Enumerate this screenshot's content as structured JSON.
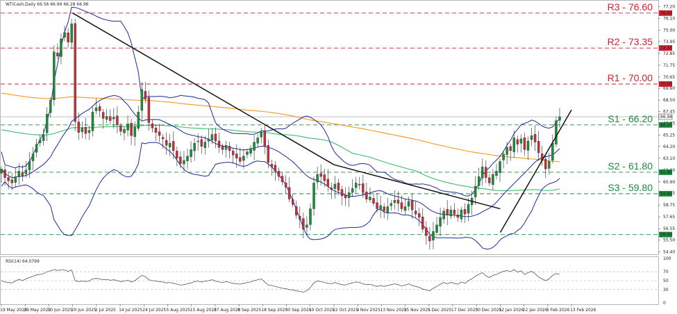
{
  "header": {
    "title": "WTICash,Daily 66.56 66.99 66.28 66.96"
  },
  "rsi_header": "RSI(14) 64.0799",
  "colors": {
    "bull": "#1e8a3c",
    "bear": "#c0303b",
    "bollinger": "#1c2a9a",
    "ma_orange": "#f0a030",
    "ma_green": "#4cbf7a",
    "resistance": "#d01f2e",
    "support": "#1e8a3c",
    "trend": "#111111"
  },
  "chart_data": {
    "type": "candlestick",
    "title": "WTICash,Daily 66.56 66.99 66.28 66.96",
    "ylim": [
      54.3,
      77.3
    ],
    "y_ticks": [
      "77.20",
      "76.10",
      "75.00",
      "73.95",
      "72.85",
      "71.75",
      "70.65",
      "69.60",
      "68.50",
      "67.45",
      "66.35",
      "65.25",
      "64.20",
      "63.10",
      "62.00",
      "60.90",
      "59.85",
      "58.75",
      "57.65",
      "56.55",
      "55.50",
      "54.40"
    ],
    "x_ticks": [
      "19 May 2025",
      "29 May 2025",
      "10 Jun 2025",
      "20 Jun 2025",
      "2 Jul 2025",
      "14 Jul 2025",
      "24 Jul 2025",
      "5 Aug 2025",
      "15 Aug 2025",
      "27 Aug 2025",
      "8 Sep 2025",
      "18 Sep 2025",
      "30 Sep 2025",
      "10 Oct 2025",
      "22 Oct 2025",
      "3 Nov 2025",
      "13 Nov 2025",
      "25 Nov 2025",
      "5 Dec 2025",
      "17 Dec 2025",
      "30 Dec 2025",
      "12 Jan 2026",
      "22 Jan 2026",
      "3 Feb 2026",
      "13 Feb 2026"
    ],
    "close_series": [
      62.1,
      61.3,
      61.0,
      60.8,
      61.4,
      61.9,
      61.5,
      62.0,
      62.8,
      63.5,
      64.4,
      64.8,
      65.3,
      67.2,
      68.5,
      73.0,
      72.6,
      74.2,
      74.8,
      73.9,
      75.6,
      66.5,
      65.5,
      65.9,
      65.4,
      65.7,
      67.4,
      67.8,
      67.5,
      66.8,
      67.0,
      66.6,
      66.9,
      66.2,
      65.6,
      65.8,
      66.3,
      65.2,
      66.0,
      67.4,
      69.5,
      68.6,
      66.4,
      65.9,
      65.5,
      65.2,
      64.9,
      64.3,
      64.5,
      63.8,
      63.1,
      62.6,
      62.9,
      63.3,
      63.9,
      64.5,
      64.7,
      64.2,
      64.6,
      64.9,
      65.3,
      64.7,
      64.1,
      63.9,
      64.3,
      63.8,
      63.4,
      63.1,
      62.8,
      63.3,
      63.7,
      64.0,
      64.6,
      65.0,
      65.5,
      64.2,
      62.7,
      62.3,
      61.9,
      61.4,
      60.9,
      60.4,
      59.3,
      58.8,
      57.8,
      57.4,
      56.5,
      56.9,
      58.4,
      60.8,
      61.6,
      61.4,
      61.0,
      60.5,
      60.2,
      60.7,
      60.1,
      59.6,
      59.4,
      59.9,
      60.3,
      60.8,
      60.6,
      59.9,
      59.3,
      59.5,
      58.9,
      58.4,
      58.7,
      58.2,
      58.6,
      58.9,
      59.2,
      58.9,
      58.4,
      58.6,
      59.1,
      58.3,
      57.9,
      57.6,
      56.5,
      55.9,
      55.4,
      56.3,
      56.9,
      57.6,
      58.2,
      57.8,
      58.3,
      57.9,
      57.6,
      58.3,
      57.9,
      58.8,
      59.4,
      60.5,
      61.4,
      62.3,
      61.3,
      60.8,
      61.6,
      61.9,
      62.8,
      63.5,
      64.1,
      63.8,
      65.0,
      64.4,
      64.9,
      63.9,
      64.7,
      65.2,
      64.6,
      63.6,
      62.9,
      62.1,
      62.8,
      64.5,
      66.6,
      66.96
    ],
    "series": [
      {
        "name": "MA200"
      },
      {
        "name": "MA100"
      },
      {
        "name": "Bollinger(20,2)"
      }
    ],
    "levels": [
      {
        "label": "R3 - 76.60",
        "value": 76.6,
        "kind": "resistance"
      },
      {
        "label": "R2 - 73.35",
        "value": 73.35,
        "kind": "resistance"
      },
      {
        "label": "R1 - 70.00",
        "value": 70.0,
        "kind": "resistance"
      },
      {
        "label": "S1 - 66.20",
        "value": 66.2,
        "kind": "support"
      },
      {
        "label": "S2 - 61.80",
        "value": 61.8,
        "kind": "support"
      },
      {
        "label": "S3 - 59.80",
        "value": 59.8,
        "kind": "support"
      },
      {
        "label": "",
        "value": 56.0,
        "kind": "support"
      }
    ],
    "level_tags": [
      {
        "label": "76.60",
        "value": 76.6,
        "kind": "resistance"
      },
      {
        "label": "73.35",
        "value": 73.35,
        "kind": "resistance"
      },
      {
        "label": "70.00",
        "value": 70.0,
        "kind": "resistance"
      },
      {
        "label": "66.20",
        "value": 66.2,
        "kind": "support"
      },
      {
        "label": "61.80",
        "value": 61.8,
        "kind": "support"
      },
      {
        "label": "59.80",
        "value": 59.8,
        "kind": "support"
      },
      {
        "label": "56.00",
        "value": 56.0,
        "kind": "support"
      }
    ],
    "price_tag": {
      "label": "66.96",
      "value": 66.96
    },
    "trendlines": [
      {
        "from": [
          "20 Jun 2025",
          76.6
        ],
        "to": [
          "22 Oct 2025",
          62.5
        ]
      },
      {
        "from": [
          "22 Oct 2025",
          62.5
        ],
        "to": [
          "12 Jan 2026",
          58.4
        ]
      },
      {
        "from": [
          "12 Jan 2026",
          56.2
        ],
        "to": [
          "13 Feb 2026",
          67.6
        ]
      }
    ],
    "rsi": {
      "name": "RSI(14)",
      "last": 64.0799,
      "ylim": [
        0,
        100
      ],
      "ticks": [
        "100",
        "70",
        "50",
        "30",
        "0"
      ],
      "values": [
        50,
        47,
        46,
        45,
        49,
        53,
        50,
        54,
        57,
        60,
        63,
        64,
        66,
        70,
        72,
        75,
        73,
        74,
        74,
        71,
        74,
        50,
        48,
        49,
        48,
        49,
        54,
        55,
        54,
        52,
        53,
        51,
        52,
        50,
        48,
        49,
        51,
        47,
        50,
        56,
        62,
        59,
        52,
        50,
        49,
        48,
        47,
        45,
        46,
        44,
        42,
        40,
        41,
        43,
        45,
        48,
        49,
        47,
        49,
        50,
        52,
        49,
        47,
        46,
        48,
        46,
        44,
        43,
        42,
        44,
        46,
        47,
        50,
        52,
        54,
        47,
        40,
        39,
        37,
        35,
        33,
        32,
        30,
        29,
        27,
        26,
        24,
        27,
        35,
        45,
        49,
        48,
        46,
        44,
        43,
        46,
        43,
        41,
        40,
        43,
        45,
        47,
        46,
        43,
        41,
        42,
        39,
        37,
        39,
        37,
        39,
        41,
        43,
        41,
        38,
        40,
        43,
        39,
        37,
        35,
        31,
        29,
        27,
        33,
        37,
        42,
        46,
        43,
        46,
        44,
        42,
        47,
        44,
        50,
        54,
        60,
        64,
        68,
        61,
        57,
        62,
        64,
        68,
        71,
        73,
        70,
        75,
        69,
        72,
        64,
        68,
        71,
        66,
        58,
        54,
        50,
        54,
        62,
        66,
        64.08
      ]
    }
  }
}
